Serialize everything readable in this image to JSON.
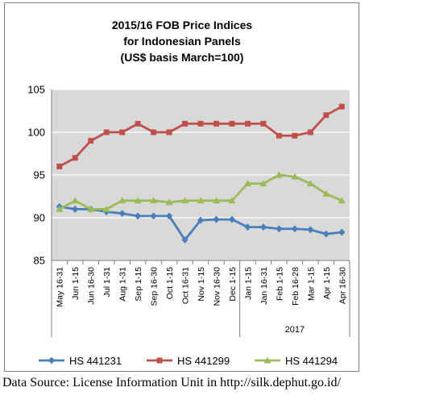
{
  "chart_data": {
    "type": "line",
    "title_lines": [
      "2015/16 FOB Price Indices",
      "for Indonesian Panels",
      "(US$ basis March=100)"
    ],
    "categories": [
      "May 16-31",
      "Jun 1-15",
      "Jun 16-30",
      "Jul 1-31",
      "Aug 1-31",
      "Sep 1-15",
      "Sep 16-30",
      "Oct 1-15",
      "Oct 16-31",
      "Nov 1-15",
      "Nov 16-30",
      "Dec 1-15",
      "Jan 1-15",
      "Jan 16-31",
      "Feb 1-15",
      "Feb 16-28",
      "Mar 1-15",
      "Apr 1-15",
      "Apr 16-30"
    ],
    "group_label": "2017",
    "ylim": [
      85,
      105
    ],
    "yticks": [
      85,
      90,
      95,
      100,
      105
    ],
    "grid": true,
    "legend": "bottom",
    "series": [
      {
        "name": "HS 441231",
        "color": "#4a7ebb",
        "marker": "diamond",
        "values": [
          91.3,
          91.0,
          91.0,
          90.7,
          90.5,
          90.2,
          90.2,
          90.2,
          87.4,
          89.7,
          89.8,
          89.8,
          88.9,
          88.9,
          88.7,
          88.7,
          88.6,
          88.1,
          88.3
        ]
      },
      {
        "name": "HS 441299",
        "color": "#c0504d",
        "marker": "square",
        "values": [
          96.0,
          97.0,
          99.0,
          100.0,
          100.0,
          101.0,
          100.0,
          100.0,
          101.0,
          101.0,
          101.0,
          101.0,
          101.0,
          101.0,
          99.6,
          99.6,
          100.0,
          102.0,
          103.0
        ]
      },
      {
        "name": "HS 441294",
        "color": "#9bbb59",
        "marker": "triangle",
        "values": [
          91.0,
          92.0,
          91.0,
          91.0,
          92.0,
          92.0,
          92.0,
          91.8,
          92.0,
          92.0,
          92.0,
          92.0,
          94.0,
          94.0,
          95.0,
          94.8,
          94.0,
          92.8,
          92.0
        ]
      }
    ],
    "colors": {
      "plot_background": "#d9d9d9",
      "gridline": "#ffffff",
      "axis": "#7f7f7f"
    }
  },
  "source_note": "Data Source: License Information Unit in http://silk.dephut.go.id/"
}
